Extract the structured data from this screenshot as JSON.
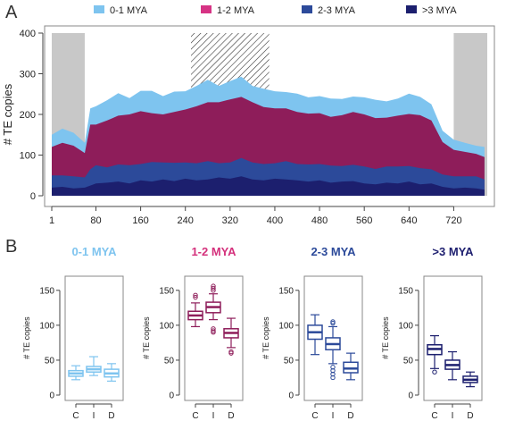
{
  "panel_a_label": "A",
  "panel_b_label": "B",
  "colors": {
    "0-1 MYA": "#7ec4ef",
    "1-2 MYA": "#8e1d5a",
    "2-3 MYA": "#2c4a9a",
    ">3 MYA": "#1c1f6e",
    "legend_1-2": "#d63384",
    "title_0-1": "#7ec4ef",
    "title_1-2": "#d4317c",
    "title_2-3": "#2c4a9a",
    "title_>3": "#1f2070",
    "gray_box": "#c8c8c8"
  },
  "chart_data": [
    {
      "type": "area",
      "stacked": true,
      "ylabel": "# TE copies",
      "xlabel": "",
      "ylim": [
        0,
        400
      ],
      "xlim": [
        1,
        780
      ],
      "xticks": [
        1,
        80,
        160,
        240,
        320,
        400,
        480,
        560,
        640,
        720
      ],
      "yticks": [
        0,
        100,
        200,
        300,
        400
      ],
      "legend": [
        "0-1 MYA",
        "1-2 MYA",
        "2-3 MYA",
        ">3 MYA"
      ],
      "legend_position": "top",
      "x": [
        1,
        20,
        40,
        60,
        70,
        80,
        100,
        120,
        140,
        160,
        180,
        200,
        220,
        240,
        260,
        280,
        300,
        320,
        340,
        360,
        380,
        400,
        420,
        440,
        460,
        480,
        500,
        520,
        540,
        560,
        580,
        600,
        620,
        640,
        660,
        680,
        700,
        720,
        740,
        760,
        775
      ],
      "series": [
        {
          "name": ">3 MYA",
          "values": [
            20,
            22,
            18,
            20,
            25,
            30,
            32,
            35,
            30,
            38,
            35,
            40,
            36,
            42,
            38,
            40,
            45,
            42,
            48,
            40,
            38,
            42,
            40,
            38,
            35,
            38,
            32,
            35,
            36,
            30,
            28,
            32,
            30,
            35,
            28,
            30,
            22,
            18,
            20,
            18,
            15
          ]
        },
        {
          "name": "2-3 MYA",
          "values": [
            30,
            28,
            30,
            25,
            40,
            45,
            38,
            42,
            45,
            40,
            48,
            42,
            45,
            40,
            42,
            45,
            35,
            40,
            45,
            42,
            40,
            38,
            45,
            40,
            42,
            40,
            42,
            38,
            40,
            42,
            38,
            40,
            42,
            38,
            40,
            35,
            30,
            30,
            28,
            30,
            25
          ]
        },
        {
          "name": "1-2 MYA",
          "values": [
            70,
            80,
            75,
            60,
            110,
            100,
            115,
            120,
            125,
            130,
            120,
            118,
            125,
            130,
            140,
            145,
            150,
            155,
            150,
            148,
            140,
            135,
            130,
            128,
            125,
            125,
            120,
            125,
            130,
            128,
            125,
            120,
            125,
            128,
            130,
            120,
            80,
            65,
            60,
            55,
            55
          ]
        },
        {
          "name": "0-1 MYA",
          "values": [
            30,
            35,
            32,
            25,
            40,
            45,
            50,
            55,
            40,
            50,
            55,
            45,
            50,
            45,
            50,
            55,
            40,
            45,
            50,
            40,
            45,
            42,
            40,
            45,
            40,
            42,
            45,
            40,
            38,
            42,
            45,
            40,
            42,
            50,
            45,
            40,
            28,
            25,
            22,
            20,
            25
          ]
        }
      ],
      "shaded_regions": [
        [
          1,
          60
        ],
        [
          250,
          390
        ],
        [
          720,
          780
        ]
      ]
    },
    {
      "type": "box",
      "title": "0-1 MYA",
      "ylabel": "# TE copies",
      "categories": [
        "C",
        "I",
        "D"
      ],
      "ylim": [
        0,
        160
      ],
      "yticks": [
        0,
        50,
        100,
        150
      ],
      "boxes": [
        {
          "min": 22,
          "q1": 27,
          "median": 31,
          "q3": 35,
          "max": 42,
          "outliers": []
        },
        {
          "min": 28,
          "q1": 33,
          "median": 37,
          "q3": 41,
          "max": 55,
          "outliers": []
        },
        {
          "min": 20,
          "q1": 26,
          "median": 31,
          "q3": 37,
          "max": 45,
          "outliers": []
        }
      ]
    },
    {
      "type": "box",
      "title": "1-2 MYA",
      "ylabel": "# TE copies",
      "categories": [
        "C",
        "I",
        "D"
      ],
      "ylim": [
        0,
        160
      ],
      "yticks": [
        0,
        50,
        100,
        150
      ],
      "boxes": [
        {
          "min": 98,
          "q1": 108,
          "median": 114,
          "q3": 120,
          "max": 132,
          "outliers": [
            140,
            143
          ]
        },
        {
          "min": 108,
          "q1": 118,
          "median": 126,
          "q3": 133,
          "max": 145,
          "outliers": [
            150,
            153,
            156,
            95,
            92,
            90
          ]
        },
        {
          "min": 68,
          "q1": 82,
          "median": 89,
          "q3": 95,
          "max": 110,
          "outliers": [
            62,
            60
          ]
        }
      ]
    },
    {
      "type": "box",
      "title": "2-3 MYA",
      "ylabel": "# TE copies",
      "categories": [
        "C",
        "I",
        "D"
      ],
      "ylim": [
        0,
        160
      ],
      "yticks": [
        0,
        50,
        100,
        150
      ],
      "boxes": [
        {
          "min": 58,
          "q1": 80,
          "median": 90,
          "q3": 100,
          "max": 115,
          "outliers": []
        },
        {
          "min": 45,
          "q1": 65,
          "median": 73,
          "q3": 82,
          "max": 98,
          "outliers": [
            103,
            105,
            40,
            35,
            30,
            25
          ]
        },
        {
          "min": 22,
          "q1": 32,
          "median": 38,
          "q3": 47,
          "max": 60,
          "outliers": []
        }
      ]
    },
    {
      "type": "box",
      "title": ">3 MYA",
      "ylabel": "# TE copies",
      "categories": [
        "C",
        "I",
        "D"
      ],
      "ylim": [
        0,
        160
      ],
      "yticks": [
        0,
        50,
        100,
        150
      ],
      "boxes": [
        {
          "min": 38,
          "q1": 58,
          "median": 66,
          "q3": 72,
          "max": 85,
          "outliers": [
            33
          ]
        },
        {
          "min": 22,
          "q1": 37,
          "median": 43,
          "q3": 50,
          "max": 62,
          "outliers": []
        },
        {
          "min": 12,
          "q1": 18,
          "median": 22,
          "q3": 27,
          "max": 33,
          "outliers": []
        }
      ]
    }
  ]
}
